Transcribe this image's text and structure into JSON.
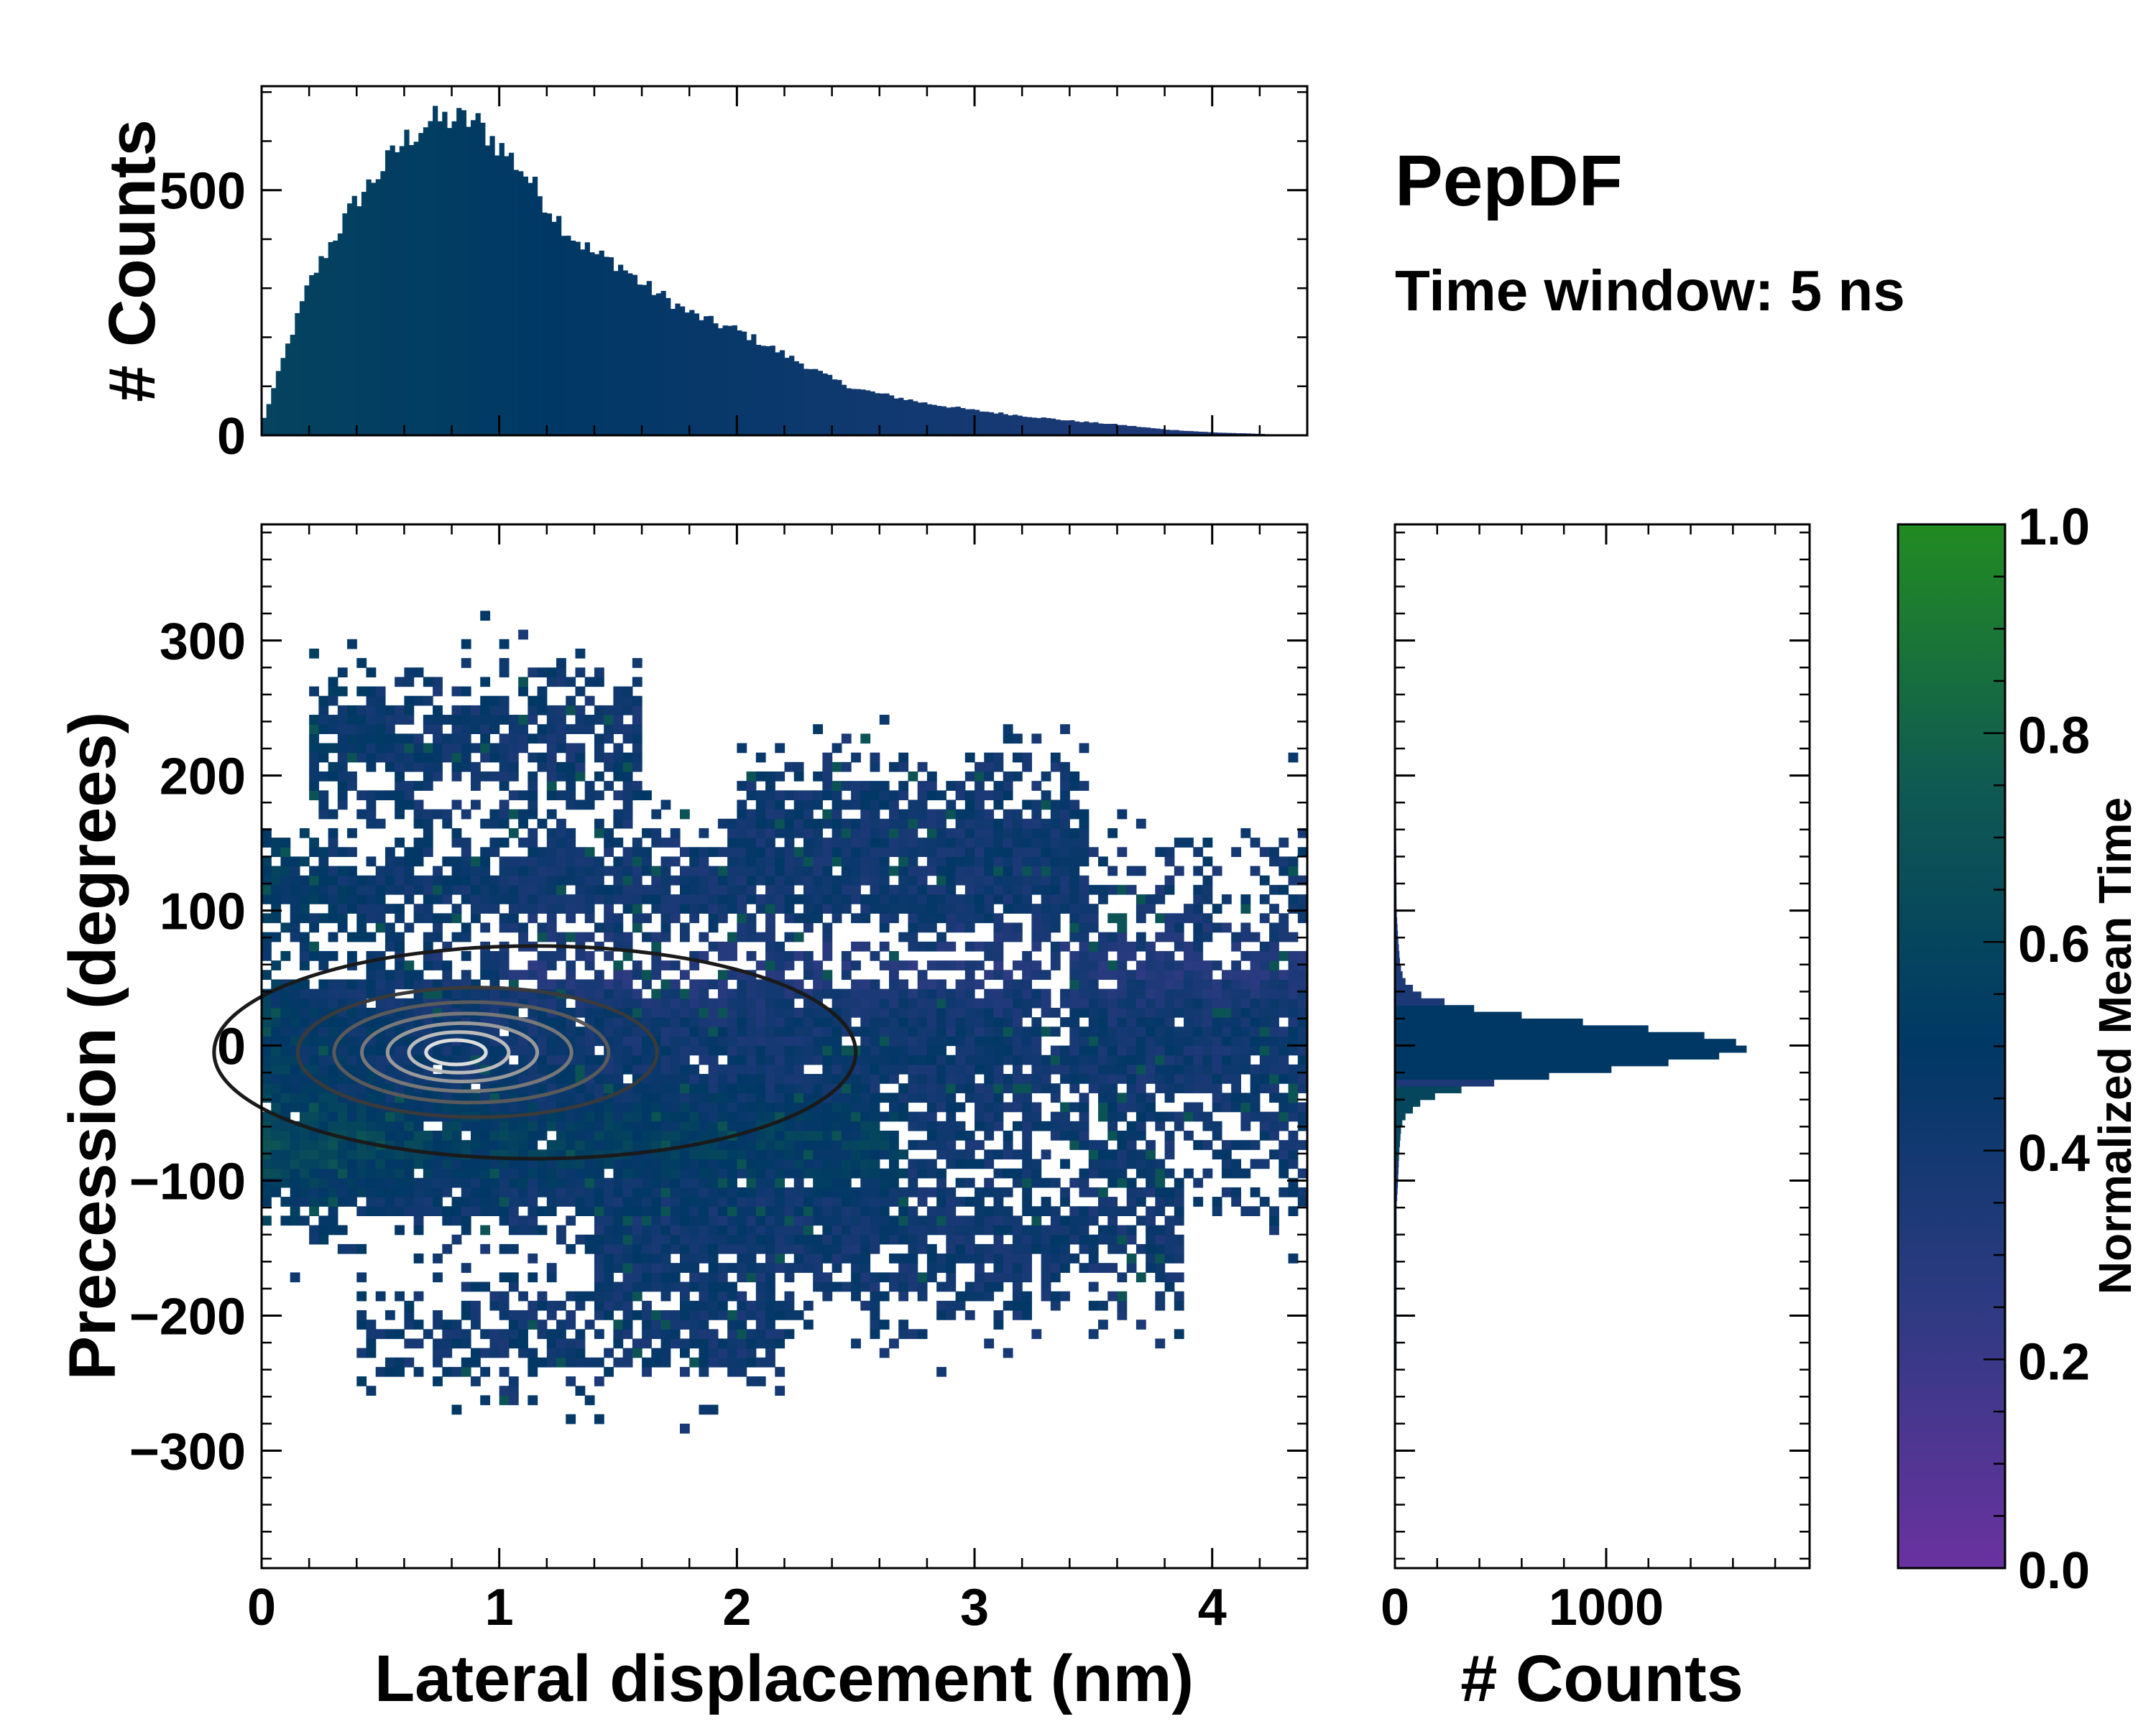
{
  "chart_data": {
    "type": "heatmap",
    "title": "PepDF",
    "subtitle": "Time window: 5 ns",
    "main": {
      "xlabel": "Lateral displacement (nm)",
      "ylabel": "Precession (degrees)",
      "xlim": [
        0,
        4.4
      ],
      "ylim": [
        -387,
        386
      ],
      "xticks": [
        "0",
        "1",
        "2",
        "3",
        "4"
      ],
      "yticks": [
        "−300",
        "−200",
        "−100",
        "0",
        "100",
        "200",
        "300"
      ],
      "ytick_values": [
        -300,
        -200,
        -100,
        0,
        100,
        200,
        300
      ],
      "xtick_values": [
        0,
        1,
        2,
        3,
        4
      ],
      "contour_center": [
        0.8,
        0
      ]
    },
    "top_histogram": {
      "type": "bar",
      "ylabel": "# Counts",
      "ylim": [
        0,
        712
      ],
      "yticks": [
        "0",
        "500"
      ],
      "ytick_values": [
        0,
        500
      ],
      "bin_centers_nm": [
        0.0,
        0.1,
        0.2,
        0.3,
        0.4,
        0.5,
        0.6,
        0.7,
        0.8,
        0.9,
        1.0,
        1.1,
        1.2,
        1.3,
        1.4,
        1.5,
        1.6,
        1.7,
        1.8,
        1.9,
        2.0,
        2.1,
        2.2,
        2.3,
        2.4,
        2.5,
        2.6,
        2.7,
        2.8,
        2.9,
        3.0,
        3.2,
        3.4,
        3.6,
        3.8,
        4.0,
        4.2,
        4.3,
        4.4
      ],
      "counts": [
        20,
        170,
        310,
        400,
        480,
        540,
        600,
        640,
        645,
        640,
        590,
        540,
        470,
        410,
        370,
        350,
        310,
        280,
        250,
        230,
        215,
        190,
        165,
        140,
        115,
        95,
        85,
        75,
        65,
        58,
        51,
        40,
        30,
        22,
        12,
        6,
        3,
        1,
        0
      ]
    },
    "right_histogram": {
      "type": "bar",
      "xlabel": "# Counts",
      "xlim": [
        0,
        1963
      ],
      "xticks": [
        "0",
        "1000"
      ],
      "xtick_values": [
        0,
        1000
      ],
      "bin_centers_deg": [
        -120,
        -100,
        -80,
        -60,
        -55,
        -50,
        -45,
        -40,
        -35,
        -30,
        -25,
        -20,
        -15,
        -10,
        -5,
        0,
        5,
        10,
        15,
        20,
        25,
        30,
        35,
        40,
        45,
        50,
        60,
        80,
        100,
        150,
        200,
        240
      ],
      "counts": [
        8,
        15,
        20,
        30,
        40,
        60,
        110,
        130,
        250,
        380,
        560,
        900,
        1150,
        1440,
        1630,
        1700,
        1530,
        1400,
        1000,
        780,
        420,
        330,
        140,
        110,
        60,
        40,
        25,
        15,
        8,
        6,
        4,
        3
      ]
    },
    "colorbar": {
      "label": "Normalized Mean Time",
      "range": [
        0,
        1
      ],
      "ticks": [
        "0.0",
        "0.2",
        "0.4",
        "0.6",
        "0.8",
        "1.0"
      ],
      "tick_values": [
        0,
        0.2,
        0.4,
        0.6,
        0.8,
        1.0
      ],
      "colors": [
        "#6a329f",
        "#2e3a82",
        "#003865",
        "#0f5a52",
        "#228b22"
      ]
    }
  }
}
